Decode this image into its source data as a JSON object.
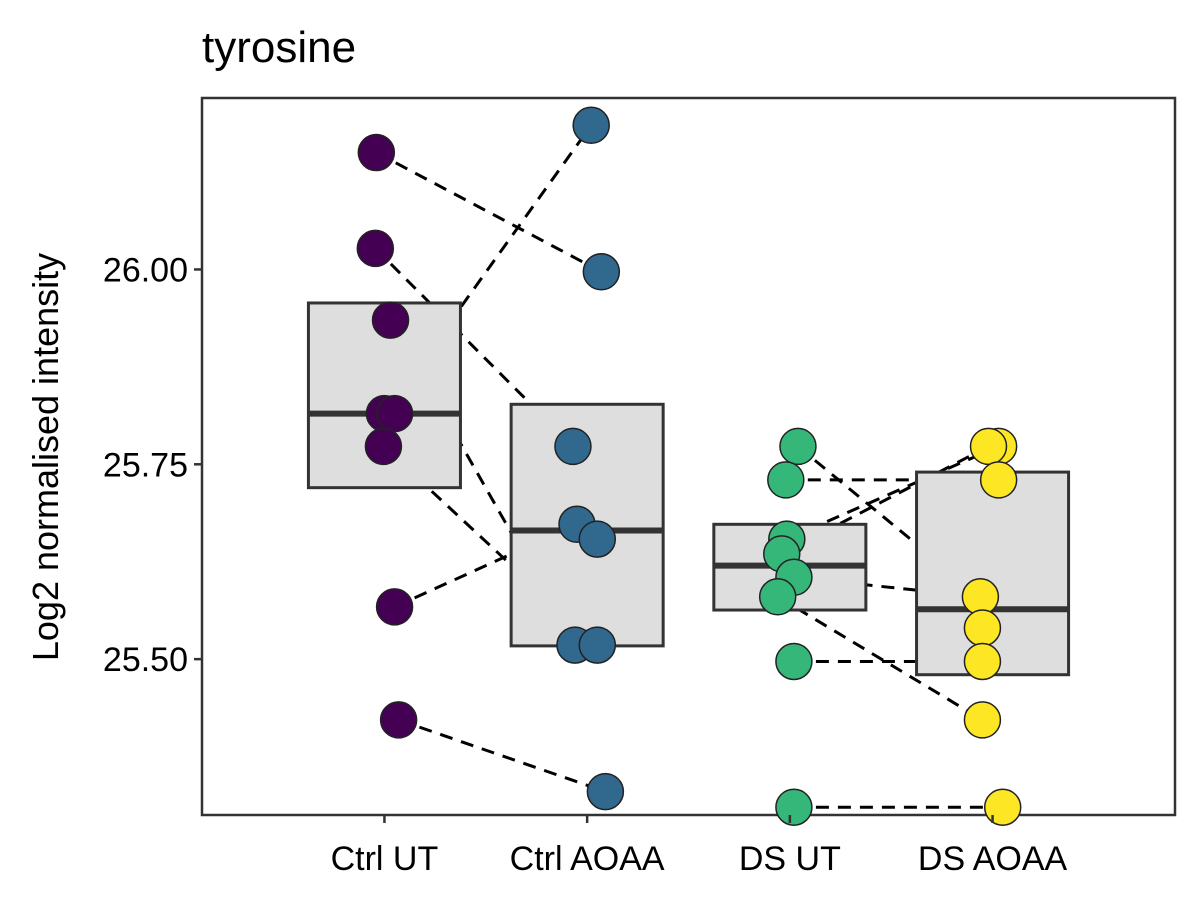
{
  "chart_data": {
    "type": "box",
    "title": "tyrosine",
    "xlabel": "",
    "ylabel": "Log2 normalised intensity",
    "categories": [
      "Ctrl UT",
      "Ctrl AOAA",
      "DS UT",
      "DS AOAA"
    ],
    "colors": [
      "#440154",
      "#31688E",
      "#35B779",
      "#FDE725"
    ],
    "box_fill": "#DEDEDE",
    "box_stroke": "#333333",
    "ylim": [
      25.3,
      26.22
    ],
    "yticks": [
      25.5,
      25.75,
      26.0
    ],
    "ytick_labels": [
      "25.50",
      "25.75",
      "26.00"
    ],
    "boxes": [
      {
        "q1": 25.72,
        "median": 25.815,
        "q3": 25.957
      },
      {
        "q1": 25.517,
        "median": 25.665,
        "q3": 25.827
      },
      {
        "q1": 25.563,
        "median": 25.62,
        "q3": 25.673
      },
      {
        "q1": 25.48,
        "median": 25.564,
        "q3": 25.74
      }
    ],
    "points": [
      [
        {
          "y": 26.15,
          "jitter": -0.04
        },
        {
          "y": 26.027,
          "jitter": -0.045
        },
        {
          "y": 25.935,
          "jitter": 0.03
        },
        {
          "y": 25.815,
          "jitter": 0.0
        },
        {
          "y": 25.815,
          "jitter": 0.05
        },
        {
          "y": 25.773,
          "jitter": -0.005
        },
        {
          "y": 25.567,
          "jitter": 0.05
        },
        {
          "y": 25.422,
          "jitter": 0.07
        }
      ],
      [
        {
          "y": 26.185,
          "jitter": 0.02
        },
        {
          "y": 25.997,
          "jitter": 0.07
        },
        {
          "y": 25.773,
          "jitter": -0.07
        },
        {
          "y": 25.673,
          "jitter": -0.05
        },
        {
          "y": 25.654,
          "jitter": 0.05
        },
        {
          "y": 25.518,
          "jitter": -0.06
        },
        {
          "y": 25.518,
          "jitter": 0.05
        },
        {
          "y": 25.33,
          "jitter": 0.09
        }
      ],
      [
        {
          "y": 25.773,
          "jitter": 0.04
        },
        {
          "y": 25.73,
          "jitter": -0.02
        },
        {
          "y": 25.654,
          "jitter": -0.015
        },
        {
          "y": 25.635,
          "jitter": -0.04
        },
        {
          "y": 25.605,
          "jitter": 0.02
        },
        {
          "y": 25.58,
          "jitter": -0.06
        },
        {
          "y": 25.497,
          "jitter": 0.02
        },
        {
          "y": 25.31,
          "jitter": 0.02
        }
      ],
      [
        {
          "y": 25.773,
          "jitter": 0.03
        },
        {
          "y": 25.773,
          "jitter": -0.02
        },
        {
          "y": 25.73,
          "jitter": 0.03
        },
        {
          "y": 25.58,
          "jitter": -0.06
        },
        {
          "y": 25.54,
          "jitter": -0.05
        },
        {
          "y": 25.497,
          "jitter": -0.05
        },
        {
          "y": 25.422,
          "jitter": -0.05
        },
        {
          "y": 25.31,
          "jitter": 0.05
        }
      ]
    ],
    "paired_lines": [
      {
        "from": [
          0,
          0
        ],
        "to": [
          1,
          1
        ]
      },
      {
        "from": [
          0,
          1
        ],
        "to": [
          1,
          2
        ]
      },
      {
        "from": [
          0,
          2
        ],
        "to": [
          1,
          5
        ]
      },
      {
        "from": [
          0,
          3
        ],
        "to": [
          1,
          0
        ]
      },
      {
        "from": [
          0,
          5
        ],
        "to": [
          1,
          6
        ]
      },
      {
        "from": [
          0,
          6
        ],
        "to": [
          1,
          3
        ]
      },
      {
        "from": [
          0,
          7
        ],
        "to": [
          1,
          7
        ]
      },
      {
        "from": [
          2,
          0
        ],
        "to": [
          3,
          3
        ]
      },
      {
        "from": [
          2,
          1
        ],
        "to": [
          3,
          2
        ]
      },
      {
        "from": [
          2,
          2
        ],
        "to": [
          3,
          0
        ]
      },
      {
        "from": [
          2,
          3
        ],
        "to": [
          3,
          1
        ]
      },
      {
        "from": [
          2,
          4
        ],
        "to": [
          3,
          3
        ]
      },
      {
        "from": [
          2,
          5
        ],
        "to": [
          3,
          6
        ]
      },
      {
        "from": [
          2,
          6
        ],
        "to": [
          3,
          5
        ]
      },
      {
        "from": [
          2,
          7
        ],
        "to": [
          3,
          7
        ]
      }
    ],
    "grid": false,
    "legend": "none"
  }
}
